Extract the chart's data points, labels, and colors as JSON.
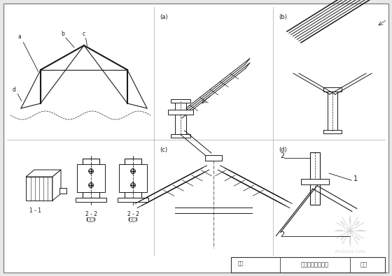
{
  "bg_color": "#e8e8e8",
  "paper_color": "#f5f5f0",
  "line_color": "#1a1a1a",
  "title_text": "三铰拱式天窗节点",
  "page_text": "图页",
  "fig_name": "图名"
}
